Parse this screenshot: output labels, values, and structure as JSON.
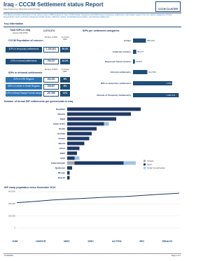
{
  "header": {
    "title": "Iraq -  CCCM Settlement status Report",
    "subtitle": "Data Produced on 28/12/2014 (with IDP data)",
    "logo": "CCCM CLUSTER"
  },
  "intro": "This Report provides information on the various types of IDP locations in Iraq. CCCM Cluster recognizes that IDPs living in temporary settlements, that require support from the various categories of basic humanitarian needs and these categories include camps, collective centres, transit/dispersed centres, and informal settlements.",
  "key_information": {
    "heading": "Key Information",
    "total_label": "Total IDPs in Iraq",
    "total_source": "(source IOM DTM)",
    "total_value": "2,073,374",
    "categories_heading": "IDPs per settlement categories"
  },
  "population": {
    "heading": "CCCM Population of concern",
    "col_number": "Number of IDPs",
    "col_percent": "% of total IDPs",
    "rows": [
      {
        "label": "IDPs in temporary settlements",
        "number": "1,150,821",
        "percent": "55.4%"
      },
      {
        "label": "IDPs in formal settlements",
        "number": "708,237",
        "percent": "34.2%"
      }
    ]
  },
  "informal": {
    "label": "IDPs in informal settlements",
    "col_number": "Number of IDPs",
    "col_percent": "% of total IDPs",
    "rows": [
      {
        "label": "IDPs in KRI Regions",
        "number": "184,981",
        "percent": "8%"
      },
      {
        "label": "IDPs in Centre & South Regions",
        "number": "159,807",
        "percent": "8%"
      },
      {
        "label": "IDPs in Mosul Hawija Formal camps",
        "number": "157,558",
        "percent": "21%"
      }
    ]
  },
  "chart_data": [
    {
      "type": "hbar",
      "categories": [
        "Camps",
        "Collective Centres",
        "Dispersed Transit Centres",
        "Informal settlements",
        "IDPs in temporary settlements",
        "Outside of Temporary Settlements"
      ],
      "values": [
        380193,
        95277,
        55867,
        421564,
        1150821,
        1346111
      ],
      "value_labels": [
        "380,193",
        "95,277",
        "55,867",
        "421,564",
        "1,150,821",
        "1,346,111"
      ],
      "color": "#1f4e79",
      "xlim": [
        0,
        1400000
      ]
    },
    {
      "type": "stacked-hbar",
      "title": "Number of formal IDP settlements per governorate in Iraq.",
      "categories": [
        "Baghdad",
        "Ninewa",
        "Najaf",
        "Salah al Din",
        "Diyala",
        "Kerbala",
        "Kirkuk",
        "Wassit",
        "Anbar",
        "Babil",
        "Erbil",
        "Sulaymaniyah",
        "Qadissiya",
        "Missan",
        "Basrah"
      ],
      "series": [
        {
          "name": "Closed",
          "color": "#a6a6a6",
          "values": [
            0,
            0,
            0,
            0,
            0,
            0,
            0,
            0,
            0,
            0,
            0,
            3,
            0,
            0,
            0
          ]
        },
        {
          "name": "Open",
          "color": "#1f3864",
          "values": [
            30,
            26,
            20,
            15,
            12,
            10,
            9,
            7,
            5,
            4,
            3,
            20,
            2,
            1,
            1
          ]
        },
        {
          "name": "Under Construction",
          "color": "#9dc3e6",
          "values": [
            0,
            0,
            0,
            2,
            0,
            0,
            0,
            0,
            0,
            0,
            2,
            5,
            0,
            0,
            0
          ]
        }
      ],
      "xlim": [
        0,
        40
      ],
      "legend": "right"
    },
    {
      "type": "line",
      "title": "IDP camp population since November 2014",
      "categories": [
        null,
        null,
        null,
        null,
        null,
        null,
        null,
        null,
        null,
        null
      ],
      "values": [
        420000,
        440000,
        465000,
        480000,
        495000,
        510000,
        520000,
        540000,
        560000,
        575000
      ],
      "color": "#1f3864",
      "ylim": [
        0,
        600000
      ],
      "yticks": [
        0,
        {
          "value": 200000,
          "label": "200,000"
        },
        {
          "value": 400000,
          "label": "400,000"
        },
        {
          "value": 600000,
          "label": "600,000"
        }
      ],
      "grid": true
    }
  ],
  "footer": {
    "logos": [
      "IOM",
      "UNHCR",
      "NRC",
      "DRC",
      "ACTED",
      "IRC",
      "REACH"
    ],
    "date": "01/10/2015",
    "page": "Page 1 of 2"
  }
}
